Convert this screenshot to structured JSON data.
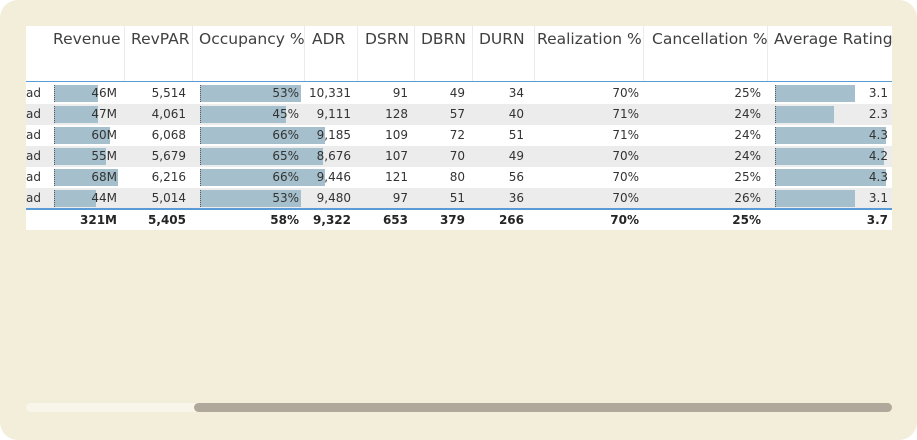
{
  "table": {
    "headers": [
      "Revenue",
      "RevPAR",
      "Occupancy %",
      "ADR",
      "DSRN",
      "DBRN",
      "DURN",
      "Realization %",
      "Cancellation %",
      "Average Rating"
    ],
    "rows": [
      {
        "label": "ad",
        "revenue": "46M",
        "revpar": "5,514",
        "occupancy": "53%",
        "adr": "10,331",
        "dsrn": "91",
        "dbrn": "49",
        "durn": "34",
        "realization": "70%",
        "cancellation": "25%",
        "rating": "3.1",
        "revenue_level": 0.68,
        "occupancy_level": 0.53,
        "rating_level": 0.72
      },
      {
        "label": "ad",
        "revenue": "47M",
        "revpar": "4,061",
        "occupancy": "45%",
        "adr": "9,111",
        "dsrn": "128",
        "dbrn": "57",
        "durn": "40",
        "realization": "71%",
        "cancellation": "24%",
        "rating": "2.3",
        "revenue_level": 0.69,
        "occupancy_level": 0.45,
        "rating_level": 0.53
      },
      {
        "label": "ad",
        "revenue": "60M",
        "revpar": "6,068",
        "occupancy": "66%",
        "adr": "9,185",
        "dsrn": "109",
        "dbrn": "72",
        "durn": "51",
        "realization": "71%",
        "cancellation": "24%",
        "rating": "4.3",
        "revenue_level": 0.88,
        "occupancy_level": 0.66,
        "rating_level": 1.0
      },
      {
        "label": "ad",
        "revenue": "55M",
        "revpar": "5,679",
        "occupancy": "65%",
        "adr": "8,676",
        "dsrn": "107",
        "dbrn": "70",
        "durn": "49",
        "realization": "70%",
        "cancellation": "24%",
        "rating": "4.2",
        "revenue_level": 0.81,
        "occupancy_level": 0.65,
        "rating_level": 0.98
      },
      {
        "label": "ad",
        "revenue": "68M",
        "revpar": "6,216",
        "occupancy": "66%",
        "adr": "9,446",
        "dsrn": "121",
        "dbrn": "80",
        "durn": "56",
        "realization": "70%",
        "cancellation": "25%",
        "rating": "4.3",
        "revenue_level": 1.0,
        "occupancy_level": 0.66,
        "rating_level": 1.0
      },
      {
        "label": "ad",
        "revenue": "44M",
        "revpar": "5,014",
        "occupancy": "53%",
        "adr": "9,480",
        "dsrn": "97",
        "dbrn": "51",
        "durn": "36",
        "realization": "70%",
        "cancellation": "26%",
        "rating": "3.1",
        "revenue_level": 0.65,
        "occupancy_level": 0.53,
        "rating_level": 0.72
      }
    ],
    "totals": {
      "revenue": "321M",
      "revpar": "5,405",
      "occupancy": "58%",
      "adr": "9,322",
      "dsrn": "653",
      "dbrn": "379",
      "durn": "266",
      "realization": "70%",
      "cancellation": "25%",
      "rating": "3.7"
    }
  },
  "colors": {
    "panel_bg": "#f3eed9",
    "bar": "#a5c0cc",
    "rule": "#5b9bd5",
    "alt_row": "#ececec",
    "scroll_thumb": "#b0a89a"
  }
}
